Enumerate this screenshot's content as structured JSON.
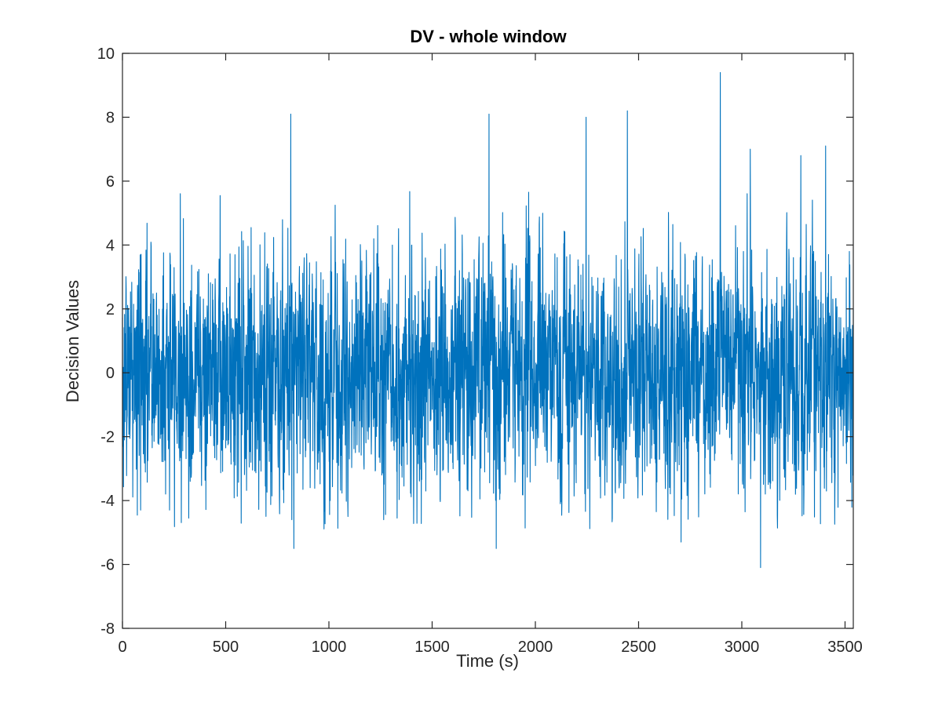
{
  "chart_data": {
    "type": "line",
    "title": "DV - whole window",
    "xlabel": "Time (s)",
    "ylabel": "Decision Values",
    "xlim": [
      0,
      3540
    ],
    "ylim": [
      -8,
      10
    ],
    "xticks": [
      0,
      500,
      1000,
      1500,
      2000,
      2500,
      3000,
      3500
    ],
    "yticks": [
      -8,
      -6,
      -4,
      -2,
      0,
      2,
      4,
      6,
      8,
      10
    ],
    "xtick_labels": [
      "0",
      "500",
      "1000",
      "1500",
      "2000",
      "2500",
      "3000",
      "3500"
    ],
    "ytick_labels": [
      "-8",
      "-6",
      "-4",
      "-2",
      "0",
      "2",
      "4",
      "6",
      "8",
      "10"
    ],
    "grid": false,
    "series": [
      {
        "name": "Decision Values",
        "color": "#0072BD",
        "sample_count": 3540,
        "mean": 0.0,
        "std": 1.9,
        "peaks": [
          {
            "x": 830,
            "y": 8.7
          },
          {
            "x": 815,
            "y": 8.1
          },
          {
            "x": 1775,
            "y": 8.1
          },
          {
            "x": 2245,
            "y": 8.0
          },
          {
            "x": 2445,
            "y": 8.2
          },
          {
            "x": 2895,
            "y": 9.4
          },
          {
            "x": 3040,
            "y": 7.0
          },
          {
            "x": 3285,
            "y": 6.8
          },
          {
            "x": 3405,
            "y": 7.1
          }
        ],
        "troughs": [
          {
            "x": 830,
            "y": -5.5
          },
          {
            "x": 1810,
            "y": -5.5
          },
          {
            "x": 2705,
            "y": -5.3
          },
          {
            "x": 3090,
            "y": -6.1
          },
          {
            "x": 820,
            "y": -4.6
          },
          {
            "x": 1265,
            "y": -4.6
          }
        ]
      }
    ]
  }
}
